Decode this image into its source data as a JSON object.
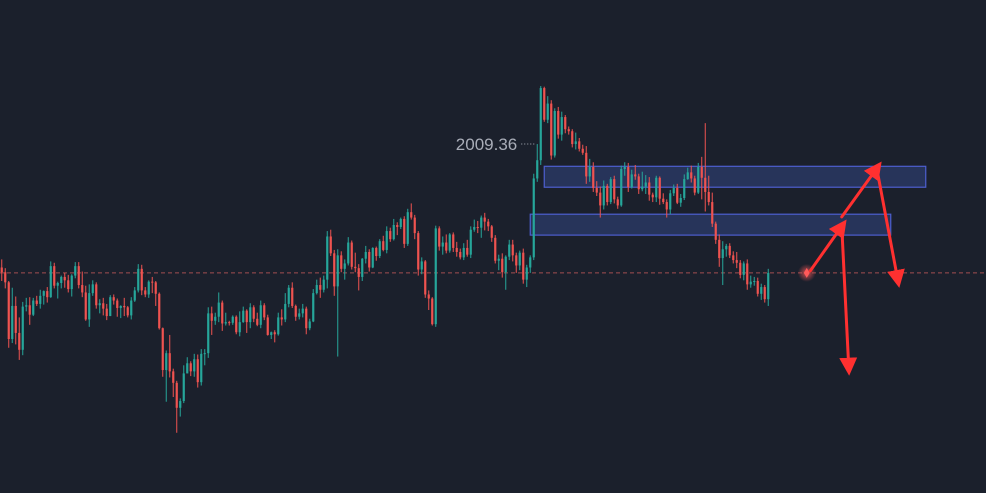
{
  "chart_data": {
    "type": "candlestick",
    "title": "",
    "xlabel": "",
    "ylabel": "",
    "ylim": [
      1955,
      2014
    ],
    "grid": false,
    "colors": {
      "background": "#1b202c",
      "up": "#26a69a",
      "down": "#ef5350",
      "zone_fill": "#2b3a66",
      "zone_border": "#4d5fcf",
      "arrow": "#ff3030",
      "reference_line": "#c4595a",
      "marker": "#ff5a5a"
    },
    "high_annotation": {
      "text": "2009.36",
      "value": 2009.36,
      "index": 153
    },
    "reference_price": 1981.7,
    "current_index": 230,
    "bars": [
      [
        1982.5,
        1983.7,
        1980.5,
        1981.8
      ],
      [
        1981.8,
        1982.4,
        1979.4,
        1980.3
      ],
      [
        1980.3,
        1980.5,
        1970.6,
        1971.9
      ],
      [
        1971.9,
        1979.5,
        1971.3,
        1976.8
      ],
      [
        1976.8,
        1978.2,
        1971.1,
        1972.8
      ],
      [
        1972.8,
        1975.1,
        1968.8,
        1970.3
      ],
      [
        1970.3,
        1977.4,
        1969.5,
        1976.7
      ],
      [
        1976.7,
        1978.0,
        1976.0,
        1976.9
      ],
      [
        1976.9,
        1978.1,
        1974.0,
        1975.5
      ],
      [
        1975.5,
        1978.0,
        1975.3,
        1977.6
      ],
      [
        1977.6,
        1978.3,
        1976.8,
        1977.1
      ],
      [
        1977.1,
        1979.2,
        1976.4,
        1978.3
      ],
      [
        1978.3,
        1979.1,
        1977.0,
        1979.0
      ],
      [
        1979.0,
        1979.6,
        1977.3,
        1978.1
      ],
      [
        1978.1,
        1983.4,
        1978.0,
        1982.7
      ],
      [
        1982.7,
        1983.2,
        1979.4,
        1979.8
      ],
      [
        1979.8,
        1980.4,
        1977.9,
        1980.2
      ],
      [
        1980.2,
        1981.3,
        1979.4,
        1981.1
      ],
      [
        1981.1,
        1981.7,
        1979.5,
        1980.6
      ],
      [
        1980.6,
        1981.4,
        1978.8,
        1979.3
      ],
      [
        1979.3,
        1981.5,
        1978.2,
        1981.3
      ],
      [
        1981.3,
        1983.3,
        1980.9,
        1982.7
      ],
      [
        1982.7,
        1983.3,
        1979.4,
        1979.9
      ],
      [
        1979.9,
        1981.9,
        1978.1,
        1978.8
      ],
      [
        1978.8,
        1979.8,
        1974.6,
        1974.8
      ],
      [
        1974.8,
        1980.0,
        1973.7,
        1978.7
      ],
      [
        1978.7,
        1980.6,
        1978.3,
        1980.0
      ],
      [
        1980.0,
        1980.3,
        1976.4,
        1976.9
      ],
      [
        1976.9,
        1977.8,
        1975.7,
        1977.2
      ],
      [
        1977.2,
        1978.0,
        1975.4,
        1976.4
      ],
      [
        1976.4,
        1977.1,
        1974.7,
        1975.3
      ],
      [
        1975.3,
        1978.4,
        1975.3,
        1978.1
      ],
      [
        1978.1,
        1978.5,
        1977.0,
        1977.6
      ],
      [
        1977.6,
        1977.9,
        1975.2,
        1976.5
      ],
      [
        1976.5,
        1976.9,
        1975.0,
        1976.8
      ],
      [
        1976.8,
        1978.0,
        1975.3,
        1976.6
      ],
      [
        1976.6,
        1976.8,
        1975.1,
        1975.4
      ],
      [
        1975.4,
        1978.1,
        1974.8,
        1977.6
      ],
      [
        1977.6,
        1979.6,
        1977.4,
        1979.1
      ],
      [
        1979.1,
        1983.0,
        1978.8,
        1982.3
      ],
      [
        1982.3,
        1982.9,
        1978.4,
        1979.1
      ],
      [
        1979.1,
        1979.6,
        1978.1,
        1978.5
      ],
      [
        1978.5,
        1980.6,
        1978.0,
        1980.4
      ],
      [
        1980.4,
        1981.1,
        1978.7,
        1980.3
      ],
      [
        1980.3,
        1980.5,
        1976.8,
        1978.6
      ],
      [
        1978.6,
        1978.8,
        1973.3,
        1973.5
      ],
      [
        1973.5,
        1973.6,
        1966.3,
        1967.3
      ],
      [
        1967.3,
        1970.2,
        1962.6,
        1969.8
      ],
      [
        1969.8,
        1972.5,
        1966.2,
        1967.1
      ],
      [
        1967.1,
        1967.5,
        1963.3,
        1965.4
      ],
      [
        1965.4,
        1965.7,
        1958.0,
        1961.7
      ],
      [
        1961.7,
        1963.1,
        1960.4,
        1962.7
      ],
      [
        1962.7,
        1968.0,
        1962.4,
        1966.8
      ],
      [
        1966.8,
        1969.2,
        1966.8,
        1968.3
      ],
      [
        1968.3,
        1968.6,
        1966.4,
        1967.1
      ],
      [
        1967.1,
        1969.7,
        1966.3,
        1968.9
      ],
      [
        1968.9,
        1969.6,
        1964.7,
        1965.5
      ],
      [
        1965.5,
        1970.4,
        1965.0,
        1969.7
      ],
      [
        1969.7,
        1970.4,
        1968.0,
        1969.8
      ],
      [
        1969.8,
        1976.6,
        1969.1,
        1975.7
      ],
      [
        1975.7,
        1976.7,
        1972.5,
        1974.6
      ],
      [
        1974.6,
        1975.8,
        1974.0,
        1975.2
      ],
      [
        1975.2,
        1978.8,
        1974.4,
        1977.3
      ],
      [
        1977.3,
        1977.6,
        1973.1,
        1974.2
      ],
      [
        1974.2,
        1975.8,
        1973.9,
        1974.4
      ],
      [
        1974.4,
        1974.6,
        1973.9,
        1974.3
      ],
      [
        1974.3,
        1975.4,
        1974.0,
        1975.2
      ],
      [
        1975.2,
        1975.4,
        1972.6,
        1972.9
      ],
      [
        1972.9,
        1976.0,
        1972.3,
        1974.4
      ],
      [
        1974.4,
        1976.7,
        1974.3,
        1976.1
      ],
      [
        1976.1,
        1976.3,
        1972.8,
        1974.4
      ],
      [
        1974.4,
        1977.2,
        1973.5,
        1976.6
      ],
      [
        1976.6,
        1976.9,
        1974.4,
        1974.9
      ],
      [
        1974.9,
        1975.8,
        1973.8,
        1974.0
      ],
      [
        1974.0,
        1977.6,
        1973.5,
        1976.9
      ],
      [
        1976.9,
        1977.2,
        1974.7,
        1975.1
      ],
      [
        1975.1,
        1975.5,
        1972.4,
        1972.5
      ],
      [
        1972.5,
        1973.0,
        1971.9,
        1972.9
      ],
      [
        1972.9,
        1973.2,
        1971.4,
        1972.6
      ],
      [
        1972.6,
        1975.8,
        1972.4,
        1975.1
      ],
      [
        1975.1,
        1976.3,
        1973.9,
        1974.8
      ],
      [
        1974.8,
        1978.7,
        1974.4,
        1977.1
      ],
      [
        1977.1,
        1979.9,
        1976.6,
        1979.5
      ],
      [
        1979.5,
        1980.3,
        1976.5,
        1976.8
      ],
      [
        1976.8,
        1977.0,
        1974.6,
        1975.2
      ],
      [
        1975.2,
        1976.4,
        1974.8,
        1975.7
      ],
      [
        1975.7,
        1977.1,
        1975.1,
        1976.4
      ],
      [
        1976.4,
        1976.7,
        1972.6,
        1973.5
      ],
      [
        1973.5,
        1974.9,
        1973.2,
        1974.5
      ],
      [
        1974.5,
        1979.3,
        1974.4,
        1978.7
      ],
      [
        1978.7,
        1980.7,
        1978.5,
        1979.9
      ],
      [
        1979.9,
        1981.0,
        1978.0,
        1979.2
      ],
      [
        1979.2,
        1981.3,
        1978.8,
        1980.7
      ],
      [
        1980.7,
        1987.9,
        1979.4,
        1987.1
      ],
      [
        1987.1,
        1988.1,
        1984.2,
        1984.6
      ],
      [
        1984.6,
        1985.1,
        1978.3,
        1979.7
      ],
      [
        1979.7,
        1985.2,
        1969.3,
        1984.3
      ],
      [
        1984.3,
        1984.9,
        1981.8,
        1982.3
      ],
      [
        1982.3,
        1983.7,
        1980.7,
        1983.1
      ],
      [
        1983.1,
        1987.0,
        1982.8,
        1986.2
      ],
      [
        1986.2,
        1986.5,
        1982.2,
        1982.6
      ],
      [
        1982.6,
        1984.7,
        1981.8,
        1982.4
      ],
      [
        1982.4,
        1983.0,
        1979.1,
        1981.1
      ],
      [
        1981.1,
        1983.9,
        1980.5,
        1983.8
      ],
      [
        1983.8,
        1985.7,
        1983.1,
        1984.8
      ],
      [
        1984.8,
        1985.2,
        1981.9,
        1982.5
      ],
      [
        1982.5,
        1985.5,
        1982.4,
        1985.4
      ],
      [
        1985.4,
        1985.6,
        1983.5,
        1984.2
      ],
      [
        1984.2,
        1986.7,
        1983.9,
        1986.4
      ],
      [
        1986.4,
        1987.2,
        1984.9,
        1985.1
      ],
      [
        1985.1,
        1988.6,
        1984.6,
        1987.9
      ],
      [
        1987.9,
        1988.4,
        1986.3,
        1986.7
      ],
      [
        1986.7,
        1989.7,
        1986.5,
        1988.8
      ],
      [
        1988.8,
        1989.2,
        1987.3,
        1988.5
      ],
      [
        1988.5,
        1989.9,
        1988.2,
        1989.7
      ],
      [
        1989.7,
        1990.1,
        1985.4,
        1986.0
      ],
      [
        1986.0,
        1991.2,
        1985.7,
        1990.7
      ],
      [
        1990.7,
        1992.0,
        1989.6,
        1989.9
      ],
      [
        1989.9,
        1990.3,
        1986.7,
        1987.6
      ],
      [
        1987.6,
        1987.9,
        1981.3,
        1982.2
      ],
      [
        1982.2,
        1984.0,
        1981.5,
        1983.4
      ],
      [
        1983.4,
        1983.6,
        1978.0,
        1978.5
      ],
      [
        1978.5,
        1979.1,
        1976.2,
        1977.9
      ],
      [
        1977.9,
        1978.1,
        1973.9,
        1974.1
      ],
      [
        1974.1,
        1988.7,
        1973.7,
        1988.3
      ],
      [
        1988.3,
        1988.6,
        1985.0,
        1985.6
      ],
      [
        1985.6,
        1987.1,
        1984.4,
        1986.2
      ],
      [
        1986.2,
        1987.4,
        1984.6,
        1985.0
      ],
      [
        1985.0,
        1987.6,
        1984.7,
        1987.4
      ],
      [
        1987.4,
        1987.7,
        1984.8,
        1985.4
      ],
      [
        1985.4,
        1986.3,
        1984.1,
        1984.8
      ],
      [
        1984.8,
        1985.3,
        1983.7,
        1984.0
      ],
      [
        1984.0,
        1986.1,
        1983.6,
        1985.4
      ],
      [
        1985.4,
        1986.6,
        1984.1,
        1984.4
      ],
      [
        1984.4,
        1988.6,
        1983.9,
        1988.1
      ],
      [
        1988.1,
        1989.6,
        1987.8,
        1988.5
      ],
      [
        1988.5,
        1989.4,
        1987.6,
        1988.4
      ],
      [
        1988.4,
        1990.2,
        1986.9,
        1989.9
      ],
      [
        1989.9,
        1990.6,
        1988.0,
        1989.3
      ],
      [
        1989.3,
        1989.7,
        1987.9,
        1988.6
      ],
      [
        1988.6,
        1988.8,
        1986.3,
        1986.9
      ],
      [
        1986.9,
        1987.3,
        1983.1,
        1983.5
      ],
      [
        1983.5,
        1984.4,
        1982.1,
        1983.8
      ],
      [
        1983.8,
        1984.6,
        1981.0,
        1981.8
      ],
      [
        1981.8,
        1984.3,
        1979.2,
        1984.1
      ],
      [
        1984.1,
        1986.6,
        1983.6,
        1985.9
      ],
      [
        1985.9,
        1986.6,
        1983.4,
        1984.3
      ],
      [
        1984.3,
        1984.7,
        1981.7,
        1982.8
      ],
      [
        1982.8,
        1985.0,
        1982.1,
        1984.7
      ],
      [
        1984.7,
        1985.3,
        1980.1,
        1980.7
      ],
      [
        1980.7,
        1982.9,
        1979.6,
        1982.5
      ],
      [
        1982.5,
        1984.3,
        1981.7,
        1984.0
      ],
      [
        1984.0,
        1996.4,
        1983.6,
        1995.7
      ],
      [
        1995.7,
        2000.8,
        1995.2,
        1998.4
      ],
      [
        1998.4,
        2009.4,
        1997.7,
        2009.1
      ],
      [
        2009.1,
        2009.3,
        2004.1,
        2004.4
      ],
      [
        2004.4,
        2007.9,
        2003.9,
        2006.8
      ],
      [
        2006.8,
        2007.3,
        1998.5,
        1999.1
      ],
      [
        1999.1,
        2006.1,
        1998.8,
        2005.7
      ],
      [
        2005.7,
        2006.3,
        2001.6,
        2002.2
      ],
      [
        2002.2,
        2005.6,
        2001.3,
        2004.8
      ],
      [
        2004.8,
        2005.1,
        2002.4,
        2003.0
      ],
      [
        2003.0,
        2003.4,
        2002.2,
        2002.7
      ],
      [
        2002.7,
        2003.0,
        2000.3,
        2000.8
      ],
      [
        2000.8,
        2002.5,
        2000.0,
        2001.2
      ],
      [
        2001.2,
        2001.7,
        1999.7,
        2000.1
      ],
      [
        2000.1,
        2000.7,
        1999.2,
        1999.5
      ],
      [
        1999.5,
        2000.5,
        1994.9,
        1996.0
      ],
      [
        1996.0,
        1998.6,
        1995.2,
        1997.4
      ],
      [
        1997.4,
        1998.1,
        1993.7,
        1994.3
      ],
      [
        1994.3,
        1995.3,
        1993.1,
        1993.6
      ],
      [
        1993.6,
        1994.5,
        1989.9,
        1991.7
      ],
      [
        1991.7,
        1995.4,
        1991.1,
        1994.6
      ],
      [
        1994.6,
        1994.9,
        1991.7,
        1992.2
      ],
      [
        1992.2,
        1995.9,
        1991.9,
        1995.6
      ],
      [
        1995.6,
        1996.1,
        1992.0,
        1992.6
      ],
      [
        1992.6,
        1993.0,
        1991.2,
        1991.7
      ],
      [
        1991.7,
        1997.6,
        1991.5,
        1997.1
      ],
      [
        1997.1,
        1998.1,
        1996.1,
        1997.4
      ],
      [
        1997.4,
        1998.0,
        1993.7,
        1994.4
      ],
      [
        1994.4,
        1997.0,
        1994.2,
        1996.3
      ],
      [
        1996.3,
        1997.7,
        1995.5,
        1996.0
      ],
      [
        1996.0,
        1996.4,
        1993.4,
        1994.1
      ],
      [
        1994.1,
        1996.7,
        1993.8,
        1994.5
      ],
      [
        1994.5,
        1996.2,
        1993.4,
        1995.1
      ],
      [
        1995.1,
        1995.9,
        1992.4,
        1993.3
      ],
      [
        1993.3,
        1993.6,
        1992.2,
        1992.9
      ],
      [
        1992.9,
        1996.1,
        1992.2,
        1995.8
      ],
      [
        1995.8,
        1996.0,
        1991.8,
        1992.7
      ],
      [
        1992.7,
        1993.5,
        1991.9,
        1992.2
      ],
      [
        1992.2,
        1992.6,
        1989.9,
        1991.1
      ],
      [
        1991.1,
        1994.0,
        1990.4,
        1993.5
      ],
      [
        1993.5,
        1994.8,
        1993.1,
        1994.3
      ],
      [
        1994.3,
        1994.9,
        1991.9,
        1992.1
      ],
      [
        1992.1,
        1993.4,
        1991.5,
        1992.8
      ],
      [
        1992.8,
        1996.3,
        1992.5,
        1995.6
      ],
      [
        1995.6,
        1997.3,
        1995.5,
        1996.6
      ],
      [
        1996.6,
        1997.6,
        1995.1,
        1995.7
      ],
      [
        1995.7,
        1996.1,
        1993.2,
        1993.6
      ],
      [
        1993.6,
        1998.0,
        1993.4,
        1997.4
      ],
      [
        1997.4,
        1998.9,
        1992.6,
        1995.8
      ],
      [
        1995.8,
        2003.9,
        1990.8,
        1993.7
      ],
      [
        1993.7,
        1996.1,
        1991.7,
        1992.2
      ],
      [
        1992.2,
        1993.6,
        1988.5,
        1989.0
      ],
      [
        1989.0,
        1989.3,
        1986.0,
        1986.6
      ],
      [
        1986.6,
        1987.4,
        1982.6,
        1983.9
      ],
      [
        1983.9,
        1986.4,
        1979.9,
        1985.2
      ],
      [
        1985.2,
        1986.0,
        1984.1,
        1985.7
      ],
      [
        1985.7,
        1986.1,
        1983.9,
        1984.3
      ],
      [
        1984.3,
        1984.9,
        1983.1,
        1983.6
      ],
      [
        1983.6,
        1984.8,
        1982.4,
        1983.2
      ],
      [
        1983.2,
        1983.6,
        1980.9,
        1981.4
      ],
      [
        1981.4,
        1983.4,
        1980.6,
        1983.1
      ],
      [
        1983.1,
        1983.7,
        1979.2,
        1980.0
      ],
      [
        1980.0,
        1981.3,
        1979.5,
        1980.4
      ],
      [
        1980.4,
        1981.1,
        1979.8,
        1980.5
      ],
      [
        1980.5,
        1981.0,
        1978.2,
        1978.6
      ],
      [
        1978.6,
        1980.1,
        1977.7,
        1979.6
      ],
      [
        1979.6,
        1979.9,
        1977.3,
        1977.8
      ],
      [
        1977.8,
        1982.3,
        1976.8,
        1981.7
      ]
    ],
    "zones": [
      {
        "from_index": 155,
        "to_index": 264,
        "top": 1997.5,
        "bottom": 1994.4
      },
      {
        "from_index": 151,
        "to_index": 254,
        "top": 1990.4,
        "bottom": 1987.3
      }
    ],
    "arrows": [
      {
        "from": [
          231,
          1982.0
        ],
        "to": [
          240,
          1988.6
        ]
      },
      {
        "from": [
          240,
          1988.6
        ],
        "to": [
          242,
          1967.7
        ]
      },
      {
        "from": [
          240,
          1990.0
        ],
        "to": [
          250,
          1997.2
        ]
      },
      {
        "from": [
          250,
          1997.2
        ],
        "to": [
          256,
          1980.7
        ]
      }
    ]
  }
}
